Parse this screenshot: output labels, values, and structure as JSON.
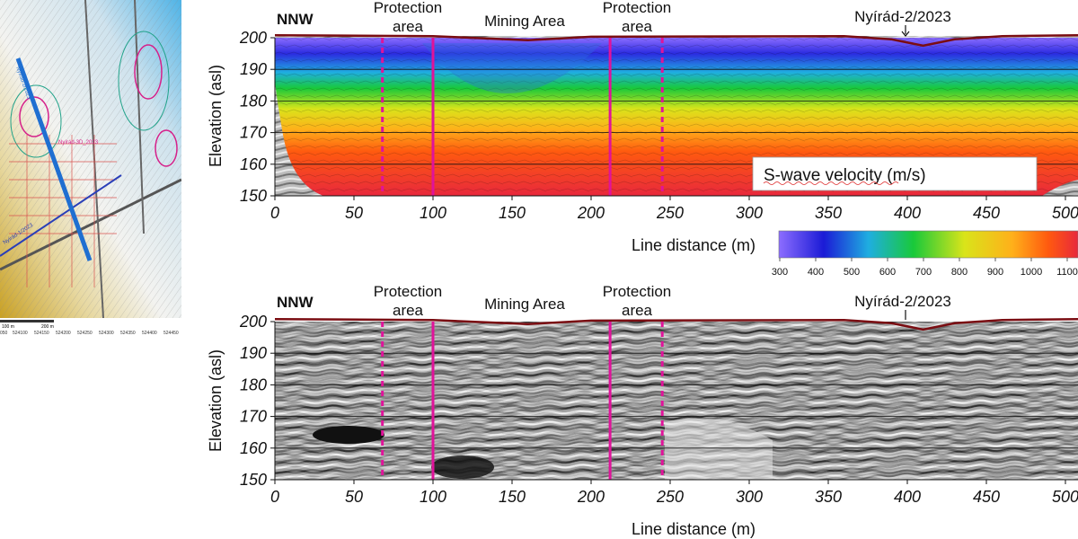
{
  "map": {
    "scale_labels": [
      "100 m",
      "200 m"
    ],
    "coord_labels": [
      "050",
      "524100",
      "524150",
      "524200",
      "524250",
      "524300",
      "524350",
      "524400",
      "524450"
    ],
    "line_labels": [
      "Nyírád-3D_2023",
      "Nyírád-2/2023",
      "Nyírád-1/2023"
    ],
    "colors": {
      "line_main": "#1f6fd1",
      "line_cross": "#2a3fb8",
      "contour": "#d6208a",
      "grid": "#d9534f"
    }
  },
  "chart_data": [
    {
      "type": "heatmap",
      "name": "S-wave velocity profile",
      "direction_label": "NNW",
      "annotations": [
        "Protection",
        "area",
        "Mining Area",
        "Protection",
        "area",
        "Nyírád-2/2023"
      ],
      "xlabel": "Line distance (m)",
      "ylabel": "Elevation (asl)",
      "xlim": [
        0,
        520
      ],
      "ylim": [
        150,
        200
      ],
      "x_ticks": [
        0,
        50,
        100,
        150,
        200,
        250,
        300,
        350,
        400,
        450,
        500
      ],
      "y_ticks": [
        200,
        190,
        180,
        170,
        160,
        150
      ],
      "boundaries": {
        "solid": [
          100,
          212
        ],
        "dashed": [
          68,
          245
        ]
      },
      "surface_elevation": {
        "x": [
          0,
          100,
          160,
          200,
          360,
          390,
          410,
          430,
          460,
          520
        ],
        "y": [
          200.8,
          200.5,
          199.2,
          200.3,
          200.5,
          199.5,
          197.5,
          199.5,
          200.5,
          200.8
        ]
      },
      "velocity_layers": [
        {
          "velocity": 500,
          "depth_m": [
            3,
            12
          ]
        },
        {
          "velocity": 700,
          "depth_m": [
            12,
            20
          ]
        },
        {
          "velocity": 900,
          "depth_m": [
            20,
            30
          ]
        },
        {
          "velocity": 1100,
          "depth_m": [
            30,
            50
          ]
        }
      ],
      "legend_title": "S-wave velocity (m/s)",
      "colorbar_ticks": [
        300,
        400,
        500,
        600,
        700,
        800,
        900,
        1000,
        1100
      ],
      "colorbar_colors": [
        "#8c6dff",
        "#1b1bd6",
        "#1faee0",
        "#19c93a",
        "#d9e41a",
        "#ffb01a",
        "#ff5a0f",
        "#e8283c"
      ]
    },
    {
      "type": "heatmap",
      "name": "Seismic section",
      "direction_label": "NNW",
      "annotations": [
        "Protection",
        "area",
        "Mining Area",
        "Protection",
        "area",
        "Nyírád-2/2023"
      ],
      "xlabel": "Line distance (m)",
      "ylabel": "Elevation (asl)",
      "xlim": [
        0,
        520
      ],
      "ylim": [
        150,
        200
      ],
      "x_ticks": [
        0,
        50,
        100,
        150,
        200,
        250,
        300,
        350,
        400,
        450,
        500
      ],
      "y_ticks": [
        200,
        190,
        180,
        170,
        160,
        150
      ],
      "boundaries": {
        "solid": [
          100,
          212
        ],
        "dashed": [
          68,
          245
        ]
      },
      "colormap": "grayscale"
    }
  ]
}
